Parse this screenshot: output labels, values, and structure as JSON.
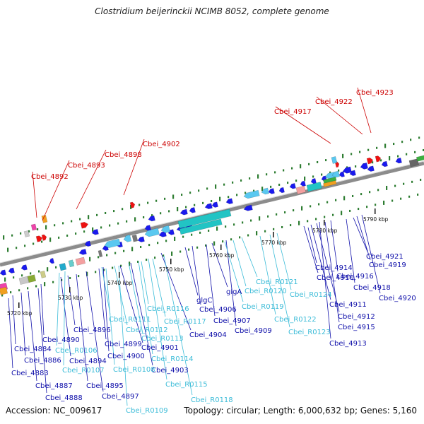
{
  "title": "Clostridium beijerinckii NCIMB 8052, complete genome",
  "footer": {
    "accession": "Accession: NC_009617",
    "info": "Topology: circular; Length: 6,000,632 bp; Genes: 5,160"
  },
  "colors": {
    "backbone": "#8c8c8c",
    "tick": "#2e7d32",
    "red_label": "#cc0000",
    "blue_label": "#1010aa",
    "cyan_label": "#3cbcd8",
    "gene_blue": "#1a1aee",
    "gene_lightblue": "#5ac8f0",
    "gene_teal": "#22c4c4",
    "gene_red": "#ee1111"
  },
  "kbp_labels": [
    "5720 kbp",
    "5730 kbp",
    "5740 kbp",
    "5750 kbp",
    "5760 kbp",
    "5770 kbp",
    "5780 kbp",
    "5790 kbp"
  ],
  "red_labels": [
    "Cbei_4892",
    "Cbei_4893",
    "Cbei_4898",
    "Cbei_4902",
    "Cbei_4917",
    "Cbei_4922",
    "Cbei_4923"
  ],
  "blue_labels": [
    "Cbei_4884",
    "Cbei_4883",
    "Cbei_4886",
    "Cbei_4887",
    "Cbei_4888",
    "Cbei_4890",
    "Cbei_4894",
    "Cbei_4895",
    "Cbei_4896",
    "Cbei_4897",
    "Cbei_4899",
    "Cbei_4900",
    "Cbei_4901",
    "Cbei_4903",
    "Cbei_4904",
    "glgC",
    "Cbei_4906",
    "glgA",
    "Cbei_4907",
    "Cbei_4909",
    "Cbei_4910",
    "Cbei_4911",
    "Cbei_4912",
    "Cbei_4913",
    "Cbei_4914",
    "Cbei_4915",
    "Cbei_4916",
    "Cbei_4918",
    "Cbei_4919",
    "Cbei_4920",
    "Cbei_4921"
  ],
  "cyan_labels": [
    "Cbei_R0106",
    "Cbei_R0107",
    "Cbei_R0108",
    "Cbei_R0109",
    "Cbei_R0111",
    "Cbei_R0112",
    "Cbei_R0113",
    "Cbei_R0114",
    "Cbei_R0115",
    "Cbei_R0116",
    "Cbei_R0117",
    "Cbei_R0118",
    "Cbei_R0119",
    "Cbei_R0120",
    "Cbei_R0121",
    "Cbei_R0122",
    "Cbei_R0123",
    "Cbei_R0124"
  ]
}
